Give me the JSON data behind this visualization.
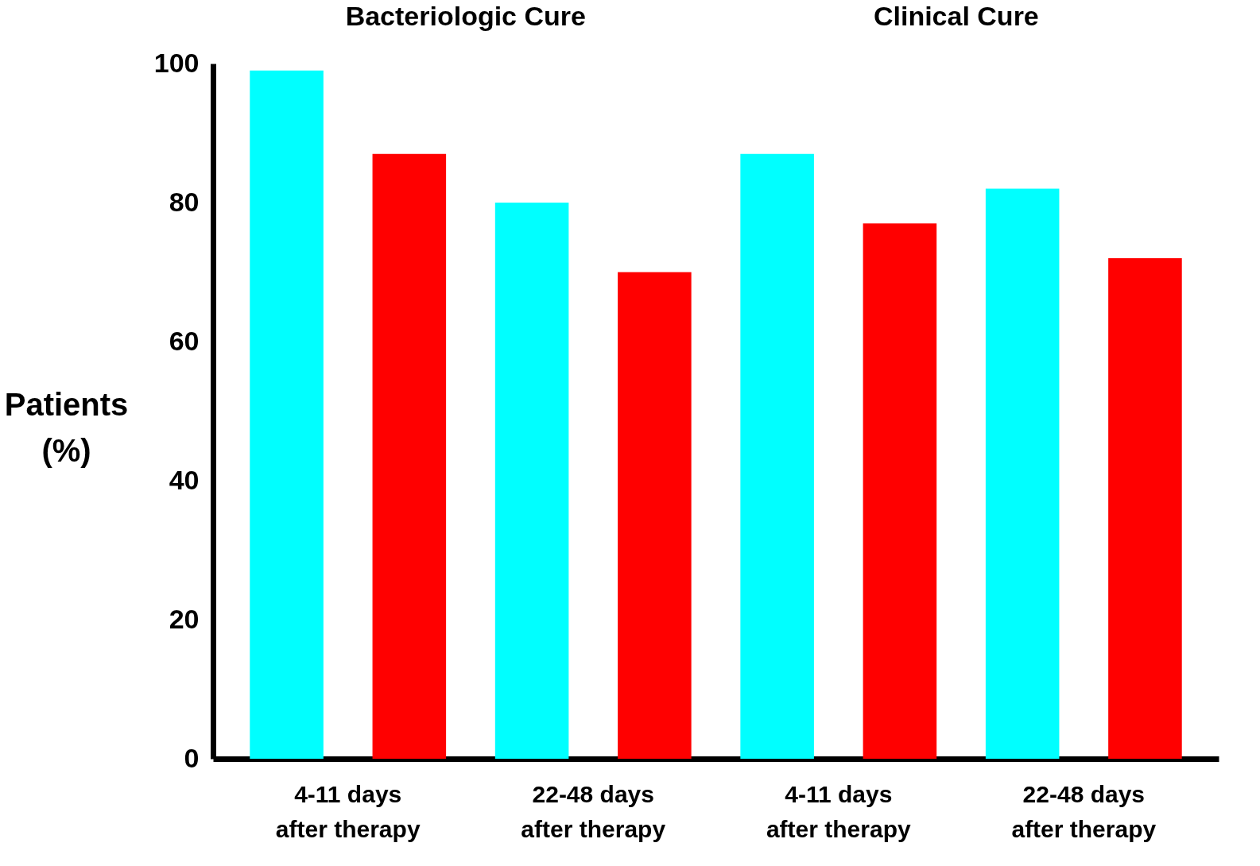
{
  "chart_data": {
    "type": "bar",
    "ylabel": "Patients (%)",
    "categories": [
      "4-11 days\nafter therapy",
      "22-48 days\nafter therapy",
      "4-11 days\nafter therapy",
      "22-48 days\nafter therapy"
    ],
    "series": [
      {
        "color": "#00ffff",
        "values": [
          99,
          80,
          87,
          82
        ]
      },
      {
        "color": "#ff0000",
        "values": [
          87,
          70,
          77,
          72
        ]
      }
    ],
    "ylim": [
      0,
      100
    ],
    "yticks": [
      0,
      20,
      40,
      60,
      80,
      100
    ],
    "grid": false,
    "legend": false,
    "annotations": [
      "Bacteriologic Cure",
      "Clinical Cure"
    ]
  }
}
